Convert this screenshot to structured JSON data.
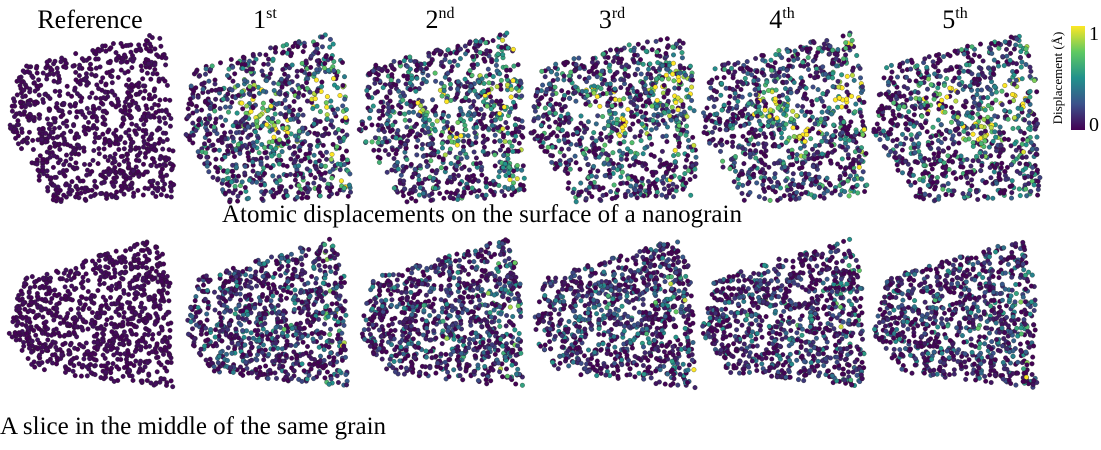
{
  "columns": [
    {
      "text": "Reference"
    },
    {
      "num": "1",
      "sup": "st"
    },
    {
      "num": "2",
      "sup": "nd"
    },
    {
      "num": "3",
      "sup": "rd"
    },
    {
      "num": "4",
      "sup": "th"
    },
    {
      "num": "5",
      "sup": "th"
    }
  ],
  "rows": [
    {
      "caption": "Atomic displacements on the surface of a nanograin"
    },
    {
      "caption": "A slice in the middle of the same grain"
    }
  ],
  "colorbar": {
    "label": "Displacement (Å)",
    "ticks": [
      1,
      0
    ]
  }
}
